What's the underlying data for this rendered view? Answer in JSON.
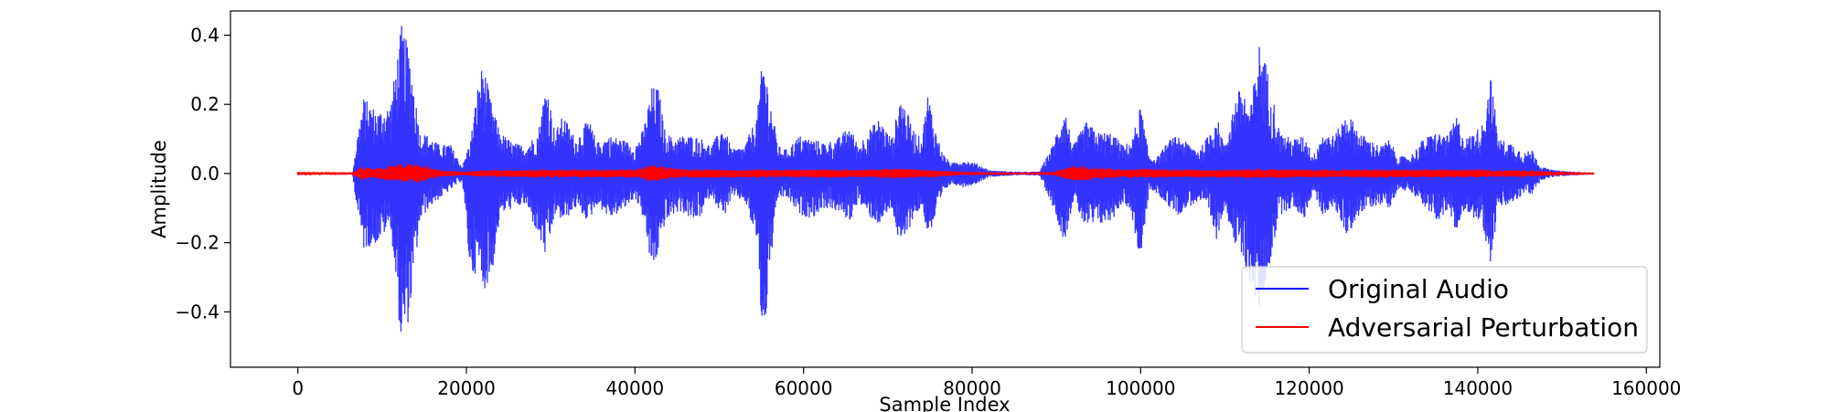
{
  "chart_data": {
    "type": "line",
    "title": "",
    "xlabel": "Sample Index",
    "ylabel": "Amplitude",
    "xlim": [
      -8000,
      161600
    ],
    "ylim": [
      -0.56,
      0.47
    ],
    "x_ticks": [
      0,
      20000,
      40000,
      60000,
      80000,
      100000,
      120000,
      140000,
      160000
    ],
    "x_tick_labels": [
      "0",
      "20000",
      "40000",
      "60000",
      "80000",
      "100000",
      "120000",
      "140000",
      "160000"
    ],
    "y_ticks": [
      -0.4,
      -0.2,
      0.0,
      0.2,
      0.4
    ],
    "y_tick_labels": [
      "−0.4",
      "−0.2",
      "0.0",
      "0.2",
      "0.4"
    ],
    "grid": false,
    "legend_position": "lower-right",
    "series": [
      {
        "name": "Original Audio",
        "color": "#0000ff",
        "alpha": 0.8,
        "envelope": {
          "x": [
            0,
            6500,
            7000,
            7800,
            9500,
            11000,
            12300,
            13200,
            14500,
            15500,
            17000,
            18000,
            19500,
            20500,
            21500,
            22000,
            23000,
            24000,
            25500,
            27000,
            28500,
            29500,
            30500,
            31500,
            33000,
            34500,
            35500,
            37000,
            38500,
            40000,
            41000,
            42000,
            42800,
            43500,
            44500,
            45500,
            47000,
            48000,
            49000,
            50500,
            51500,
            53000,
            54500,
            55200,
            56000,
            57000,
            58000,
            59500,
            61000,
            62500,
            64000,
            65500,
            66500,
            67500,
            69000,
            70500,
            71500,
            73000,
            74000,
            74800,
            75500,
            76500,
            77500,
            79000,
            80500,
            82000,
            84000,
            86000,
            88000,
            89500,
            90000,
            91000,
            92000,
            93500,
            95000,
            96500,
            98000,
            99000,
            100000,
            101000,
            102000,
            103500,
            104500,
            105500,
            107000,
            108000,
            109000,
            110000,
            111000,
            112000,
            113000,
            114000,
            114500,
            115500,
            116500,
            118000,
            119500,
            120500,
            121500,
            123000,
            124500,
            126000,
            127000,
            128500,
            129500,
            130500,
            132000,
            133500,
            135000,
            136500,
            137500,
            138500,
            139500,
            140500,
            141500,
            142500,
            144000,
            145500,
            146500,
            147500,
            149000,
            151000,
            153800
          ],
          "upper": [
            0.003,
            0.004,
            0.1,
            0.22,
            0.18,
            0.2,
            0.43,
            0.36,
            0.12,
            0.11,
            0.08,
            0.09,
            0.02,
            0.1,
            0.28,
            0.32,
            0.2,
            0.12,
            0.09,
            0.08,
            0.12,
            0.27,
            0.12,
            0.17,
            0.1,
            0.16,
            0.09,
            0.11,
            0.1,
            0.08,
            0.13,
            0.25,
            0.25,
            0.13,
            0.1,
            0.11,
            0.11,
            0.1,
            0.08,
            0.14,
            0.07,
            0.08,
            0.17,
            0.35,
            0.22,
            0.08,
            0.07,
            0.11,
            0.1,
            0.09,
            0.1,
            0.14,
            0.08,
            0.12,
            0.16,
            0.1,
            0.23,
            0.13,
            0.1,
            0.24,
            0.14,
            0.06,
            0.03,
            0.04,
            0.03,
            0.01,
            0.007,
            0.005,
            0.006,
            0.08,
            0.12,
            0.19,
            0.08,
            0.15,
            0.12,
            0.12,
            0.08,
            0.1,
            0.2,
            0.05,
            0.05,
            0.1,
            0.11,
            0.09,
            0.07,
            0.11,
            0.17,
            0.08,
            0.2,
            0.26,
            0.18,
            0.38,
            0.36,
            0.25,
            0.12,
            0.1,
            0.11,
            0.05,
            0.12,
            0.11,
            0.18,
            0.12,
            0.1,
            0.08,
            0.1,
            0.05,
            0.05,
            0.1,
            0.12,
            0.11,
            0.17,
            0.1,
            0.12,
            0.14,
            0.29,
            0.1,
            0.09,
            0.06,
            0.07,
            0.02,
            0.01,
            0.006,
            0.003
          ],
          "lower": [
            -0.003,
            -0.004,
            -0.1,
            -0.22,
            -0.2,
            -0.15,
            -0.51,
            -0.42,
            -0.14,
            -0.1,
            -0.07,
            -0.05,
            -0.02,
            -0.3,
            -0.28,
            -0.34,
            -0.3,
            -0.12,
            -0.1,
            -0.09,
            -0.18,
            -0.25,
            -0.12,
            -0.14,
            -0.1,
            -0.14,
            -0.09,
            -0.13,
            -0.11,
            -0.07,
            -0.13,
            -0.29,
            -0.23,
            -0.15,
            -0.12,
            -0.11,
            -0.14,
            -0.12,
            -0.06,
            -0.13,
            -0.07,
            -0.08,
            -0.2,
            -0.53,
            -0.28,
            -0.07,
            -0.07,
            -0.12,
            -0.13,
            -0.1,
            -0.11,
            -0.14,
            -0.08,
            -0.12,
            -0.15,
            -0.1,
            -0.23,
            -0.13,
            -0.1,
            -0.18,
            -0.15,
            -0.06,
            -0.03,
            -0.04,
            -0.03,
            -0.01,
            -0.007,
            -0.005,
            -0.006,
            -0.09,
            -0.13,
            -0.2,
            -0.08,
            -0.16,
            -0.15,
            -0.14,
            -0.08,
            -0.13,
            -0.27,
            -0.05,
            -0.06,
            -0.1,
            -0.12,
            -0.1,
            -0.08,
            -0.11,
            -0.2,
            -0.09,
            -0.2,
            -0.25,
            -0.32,
            -0.4,
            -0.37,
            -0.24,
            -0.12,
            -0.1,
            -0.13,
            -0.05,
            -0.12,
            -0.1,
            -0.18,
            -0.12,
            -0.1,
            -0.09,
            -0.1,
            -0.05,
            -0.05,
            -0.09,
            -0.14,
            -0.11,
            -0.18,
            -0.1,
            -0.13,
            -0.14,
            -0.26,
            -0.1,
            -0.09,
            -0.06,
            -0.06,
            -0.02,
            -0.01,
            -0.006,
            -0.003
          ]
        }
      },
      {
        "name": "Adversarial Perturbation",
        "color": "#ff0000",
        "envelope": {
          "x": [
            0,
            6500,
            7500,
            9000,
            10500,
            12000,
            14000,
            15500,
            16500,
            18000,
            20000,
            22000,
            25000,
            28000,
            31000,
            34000,
            37000,
            40000,
            42000,
            44000,
            46000,
            48000,
            50000,
            53000,
            56000,
            59000,
            62000,
            65000,
            68000,
            71000,
            74000,
            76000,
            78000,
            82000,
            86000,
            89500,
            92000,
            95000,
            98000,
            101000,
            104000,
            107000,
            110000,
            113000,
            116000,
            119000,
            122000,
            125000,
            128000,
            131000,
            134000,
            137000,
            140000,
            143000,
            146000,
            149000,
            153800
          ],
          "upper": [
            0.005,
            0.004,
            0.02,
            0.014,
            0.02,
            0.026,
            0.028,
            0.02,
            0.012,
            0.008,
            0.006,
            0.01,
            0.011,
            0.012,
            0.012,
            0.012,
            0.012,
            0.012,
            0.025,
            0.018,
            0.012,
            0.014,
            0.012,
            0.012,
            0.012,
            0.012,
            0.012,
            0.012,
            0.012,
            0.016,
            0.012,
            0.01,
            0.006,
            0.004,
            0.003,
            0.005,
            0.022,
            0.018,
            0.012,
            0.014,
            0.012,
            0.012,
            0.012,
            0.014,
            0.014,
            0.012,
            0.012,
            0.012,
            0.012,
            0.012,
            0.012,
            0.012,
            0.012,
            0.01,
            0.01,
            0.006,
            0.003
          ],
          "lower": [
            -0.005,
            -0.004,
            -0.02,
            -0.014,
            -0.02,
            -0.026,
            -0.028,
            -0.02,
            -0.012,
            -0.008,
            -0.006,
            -0.01,
            -0.011,
            -0.012,
            -0.012,
            -0.012,
            -0.012,
            -0.012,
            -0.025,
            -0.018,
            -0.012,
            -0.014,
            -0.012,
            -0.012,
            -0.012,
            -0.012,
            -0.012,
            -0.012,
            -0.012,
            -0.016,
            -0.012,
            -0.01,
            -0.006,
            -0.004,
            -0.003,
            -0.005,
            -0.022,
            -0.018,
            -0.012,
            -0.014,
            -0.012,
            -0.012,
            -0.012,
            -0.014,
            -0.014,
            -0.012,
            -0.012,
            -0.012,
            -0.012,
            -0.012,
            -0.012,
            -0.012,
            -0.012,
            -0.01,
            -0.01,
            -0.006,
            -0.003
          ]
        }
      }
    ]
  }
}
